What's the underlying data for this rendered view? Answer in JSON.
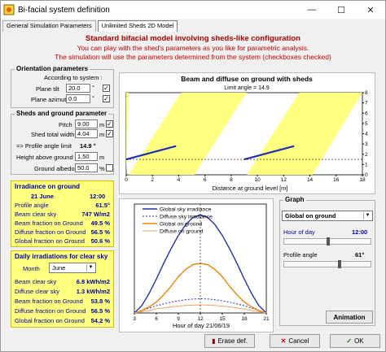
{
  "window": {
    "title": "Bi-facial system definition",
    "minimize": "—",
    "maximize": "☐",
    "close": "✕"
  },
  "tabs": [
    {
      "label": "General Simulation Parameters"
    },
    {
      "label": "Unlimited Sheds 2D Model"
    }
  ],
  "header": {
    "line1": "Standard bifacial model involving sheds-like configuration",
    "line2": "You can play with the shed's parameters as you like for parametric analysis.",
    "line3": "The simulation will use the parameters determined from the system   (checkboxes checked)"
  },
  "orientation": {
    "title": "Orientation parameters",
    "according": "According to system :",
    "plane_tilt_label": "Plane tilt",
    "plane_tilt": "20.0",
    "plane_azimut_label": "Plane azimut",
    "plane_azimut": "0.0",
    "deg": "°"
  },
  "sheds": {
    "title": "Sheds and ground parameter",
    "pitch_label": "Pitch",
    "pitch": "9.00",
    "shed_width_label": "Shed total width",
    "shed_width": "4.04",
    "unit_m": "m",
    "profile_limit_label": "=> Profile angle limit",
    "profile_limit": "14.9 °",
    "height_label": "Height above ground",
    "height": "1.50",
    "albedo_label": "Ground albedo",
    "albedo": "50.0",
    "unit_pct": "%"
  },
  "irradiance": {
    "title": "Irradiance on ground",
    "date": "21 June",
    "time": "12:00",
    "rows": [
      {
        "label": "Profile angle",
        "value": "61.5°"
      },
      {
        "label": "Beam clear sky",
        "value": "747 W/m2"
      },
      {
        "label": "Beam fraction on Ground",
        "value": "49.5 %"
      },
      {
        "label": "Diffuse fraction on Ground",
        "value": "56.5 %"
      },
      {
        "label": "Global fraction on Ground",
        "value": "50.6 %"
      }
    ]
  },
  "daily": {
    "title": "Daily irradiations for clear sky",
    "month_label": "Month",
    "month": "June",
    "rows": [
      {
        "label": "Beam clear sky",
        "value": "6.8 kWh/m2"
      },
      {
        "label": "Diffuse clear sky",
        "value": "1.3 kWh/m2"
      },
      {
        "label": "Beam fraction on Ground",
        "value": "53.8 %"
      },
      {
        "label": "Diffuse fraction on Ground",
        "value": "56.5 %"
      },
      {
        "label": "Global fraction on Ground",
        "value": "54.2 %"
      }
    ]
  },
  "chart1": {
    "title": "Beam and diffuse on ground with sheds",
    "subtitle": "Limit angle = 14.9",
    "xlabel": "Distance at ground level  [m]",
    "xticks": [
      "0",
      "2",
      "4",
      "6",
      "8",
      "10",
      "12",
      "14",
      "16",
      "18"
    ],
    "yticks": [
      "0",
      "1",
      "2",
      "3",
      "4",
      "5",
      "6",
      "7",
      "8"
    ]
  },
  "chart2": {
    "legend": [
      "Global sky irradiance",
      "Diffuse sky irradiance",
      "Global on ground",
      "Diffuse on ground"
    ],
    "xlabel": "Hour of day 21/06/19",
    "xticks": [
      "3",
      "6",
      "9",
      "12",
      "15",
      "18",
      "21"
    ]
  },
  "graph": {
    "title": "Graph",
    "selector": "Global on ground",
    "hour_label": "Hour of day",
    "hour": "12:00",
    "profile_label": "Profile angle",
    "profile": "61°",
    "animation": "Animation"
  },
  "buttons": {
    "erase": "Erase def.",
    "cancel": "Cancel",
    "ok": "OK"
  },
  "colors": {
    "beam": "#ffff80",
    "shed": "#2030b0",
    "global_sky": "#2030b0",
    "diffuse_sky": "#2030b0",
    "global_ground": "#f08000",
    "diffuse_ground": "#f0a060"
  },
  "chart_data": [
    {
      "type": "line",
      "title": "Beam and diffuse on ground with sheds",
      "subtitle": "Limit angle = 14.9",
      "xlabel": "Distance at ground level  [m]",
      "xlim": [
        0,
        18
      ],
      "ylim": [
        0,
        8
      ]
    },
    {
      "type": "line",
      "xlabel": "Hour of day 21/06/19",
      "x": [
        3,
        4,
        5,
        6,
        7,
        8,
        9,
        10,
        11,
        12,
        13,
        14,
        15,
        16,
        17,
        18,
        19,
        20,
        21
      ],
      "series": [
        {
          "name": "Global sky irradiance",
          "values": [
            0,
            60,
            160,
            280,
            410,
            530,
            640,
            730,
            790,
            810,
            790,
            730,
            640,
            530,
            410,
            280,
            160,
            60,
            0
          ]
        },
        {
          "name": "Diffuse sky irradiance",
          "values": [
            0,
            20,
            40,
            60,
            75,
            90,
            100,
            110,
            115,
            118,
            115,
            110,
            100,
            90,
            75,
            60,
            40,
            20,
            0
          ]
        },
        {
          "name": "Global on ground",
          "values": [
            0,
            20,
            50,
            90,
            150,
            220,
            300,
            360,
            400,
            410,
            400,
            360,
            300,
            220,
            150,
            90,
            50,
            20,
            0
          ]
        },
        {
          "name": "Diffuse on ground",
          "values": [
            0,
            10,
            20,
            34,
            42,
            50,
            56,
            62,
            65,
            67,
            65,
            62,
            56,
            50,
            42,
            34,
            20,
            10,
            0
          ]
        }
      ],
      "ylim": [
        0,
        900
      ]
    }
  ]
}
